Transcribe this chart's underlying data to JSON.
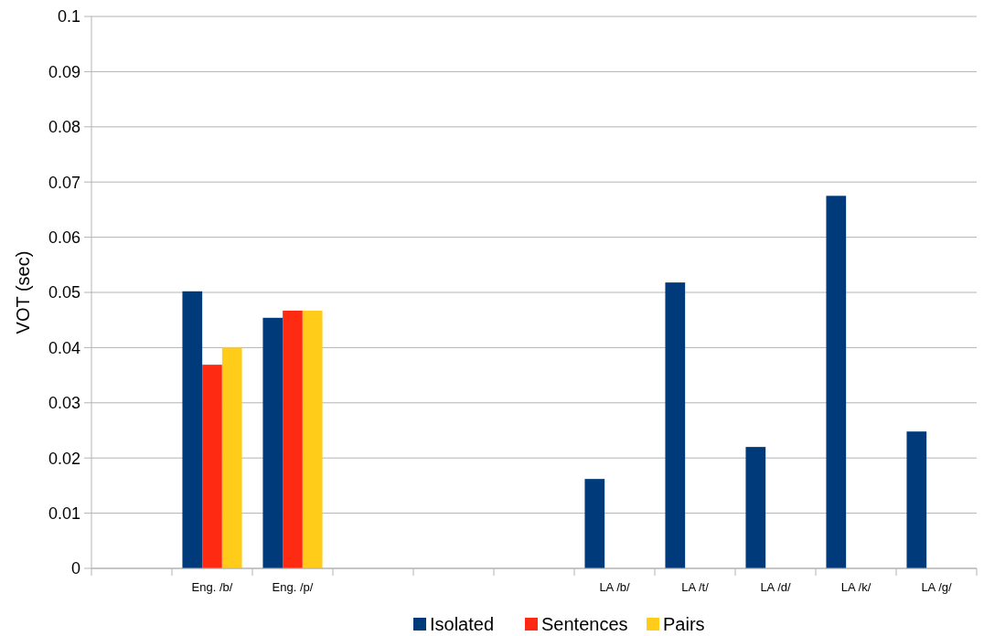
{
  "chart_data": {
    "type": "bar",
    "ylabel": "VOT (sec)",
    "categories": [
      null,
      "Eng. /b/",
      "Eng. /p/",
      null,
      null,
      null,
      "LA /b/",
      "LA /t/",
      "LA /d/",
      "LA /k/",
      "LA /g/"
    ],
    "series": [
      {
        "name": "Isolated",
        "color": "#003a7a",
        "values": [
          null,
          0.0502,
          0.0454,
          null,
          null,
          null,
          0.0162,
          0.0518,
          0.022,
          0.0675,
          0.0248
        ]
      },
      {
        "name": "Sentences",
        "color": "#ff2a12",
        "values": [
          null,
          0.0369,
          0.0467,
          null,
          null,
          null,
          null,
          null,
          null,
          null,
          null
        ]
      },
      {
        "name": "Pairs",
        "color": "#ffcc1a",
        "values": [
          null,
          0.04,
          0.0467,
          null,
          null,
          null,
          null,
          null,
          null,
          null,
          null
        ]
      }
    ],
    "ylim": [
      0,
      0.1
    ],
    "yticks": [
      0,
      0.01,
      0.02,
      0.03,
      0.04,
      0.05,
      0.06,
      0.07,
      0.08,
      0.09,
      0.1
    ],
    "grid": "y",
    "legend": "bottom"
  }
}
